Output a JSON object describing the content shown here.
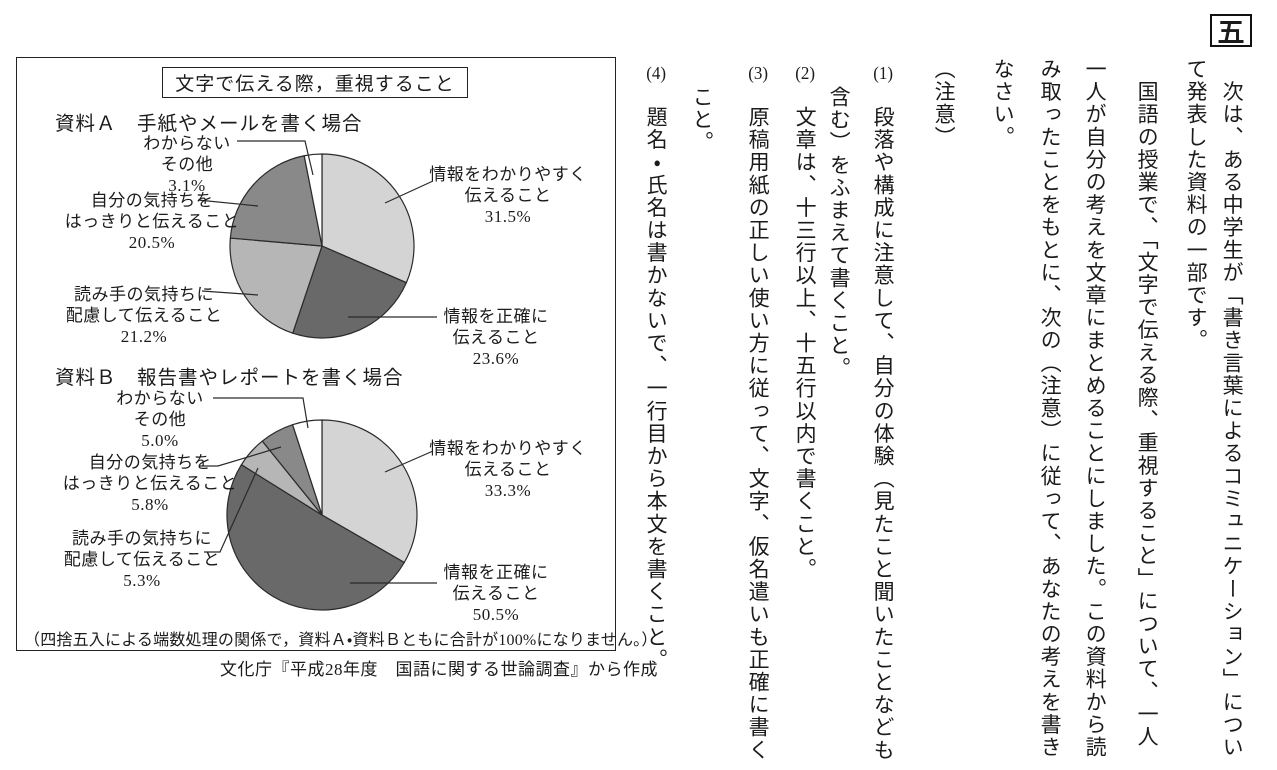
{
  "section": {
    "number": "五"
  },
  "text": {
    "intro_lines": [
      "　次は、ある中学生が「書き言葉によるコミュニケーション」につい",
      "て発表した資料の一部です。",
      "　国語の授業で、「文字で伝える際、重視すること」について、一人",
      "一人が自分の考えを文章にまとめることにしました。この資料から読",
      "み取ったことをもとに、次の（注意）に従って、あなたの考えを書き",
      "なさい。"
    ],
    "notice_header": "（注意）",
    "notice_items": [
      {
        "number": "(1)",
        "lines": [
          "段落や構成に注意して、自分の体験（見たこと聞いたことなども",
          "含む）をふまえて書くこと。"
        ]
      },
      {
        "number": "(2)",
        "lines": [
          "文章は、十三行以上、十五行以内で書くこと。"
        ]
      },
      {
        "number": "(3)",
        "lines": [
          "原稿用紙の正しい使い方に従って、文字、仮名遣いも正確に書く",
          "こと。"
        ]
      },
      {
        "number": "(4)",
        "lines": [
          "題名・氏名は書かないで、一行目から本文を書くこと。"
        ]
      }
    ]
  },
  "figure": {
    "title": "文字で伝える際，重視すること",
    "note": "（四捨五入による端数処理の関係で，資料Ａ・資料Ｂともに合計が100%になりません。）",
    "source": "文化庁『平成28年度　国語に関する世論調査』から作成"
  },
  "chart_data": [
    {
      "type": "pie",
      "title": "資料Ａ　手紙やメールを書く場合",
      "direction": "clockwise",
      "start_angle": "12-oclock",
      "colors": [
        "#d4d4d4",
        "#696969",
        "#b6b6b6",
        "#898989",
        "#ffffff"
      ],
      "slices": [
        {
          "label": "情報をわかりやすく伝えること",
          "label_lines": [
            "情報をわかりやすく",
            "伝えること"
          ],
          "value": 31.5
        },
        {
          "label": "情報を正確に伝えること",
          "label_lines": [
            "情報を正確に",
            "伝えること"
          ],
          "value": 23.6
        },
        {
          "label": "読み手の気持ちに配慮して伝えること",
          "label_lines": [
            "読み手の気持ちに",
            "配慮して伝えること"
          ],
          "value": 21.2
        },
        {
          "label": "自分の気持ちをはっきりと伝えること",
          "label_lines": [
            "自分の気持ちを",
            "はっきりと伝えること"
          ],
          "value": 20.5
        },
        {
          "label": "わからない・その他",
          "label_lines": [
            "わからない",
            "その他"
          ],
          "value": 3.1
        }
      ]
    },
    {
      "type": "pie",
      "title": "資料Ｂ　報告書やレポートを書く場合",
      "direction": "clockwise",
      "start_angle": "12-oclock",
      "colors": [
        "#d4d4d4",
        "#696969",
        "#b6b6b6",
        "#898989",
        "#ffffff"
      ],
      "slices": [
        {
          "label": "情報をわかりやすく伝えること",
          "label_lines": [
            "情報をわかりやすく",
            "伝えること"
          ],
          "value": 33.3
        },
        {
          "label": "情報を正確に伝えること",
          "label_lines": [
            "情報を正確に",
            "伝えること"
          ],
          "value": 50.5
        },
        {
          "label": "読み手の気持ちに配慮して伝えること",
          "label_lines": [
            "読み手の気持ちに",
            "配慮して伝えること"
          ],
          "value": 5.3
        },
        {
          "label": "自分の気持ちをはっきりと伝えること",
          "label_lines": [
            "自分の気持ちを",
            "はっきりと伝えること"
          ],
          "value": 5.8
        },
        {
          "label": "わからない・その他",
          "label_lines": [
            "わからない",
            "その他"
          ],
          "value": 5.0
        }
      ]
    }
  ]
}
